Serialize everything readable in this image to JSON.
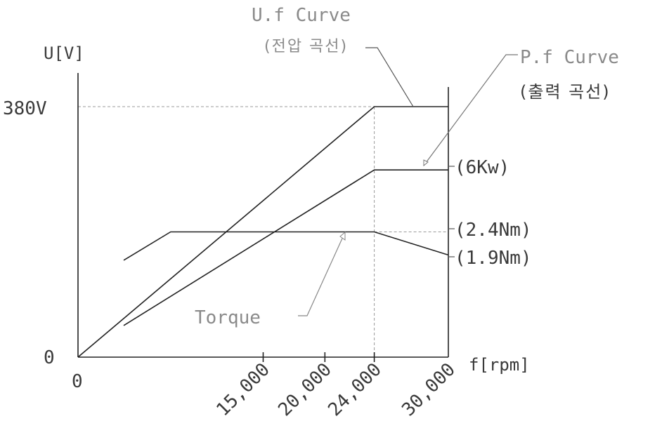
{
  "chart_data": {
    "type": "line",
    "x_label": "f[rpm]",
    "y_label": "U[V]",
    "x_ticks": [
      "0",
      "15,000",
      "20,000",
      "24,000",
      "30,000"
    ],
    "y_ticks": [
      "0",
      "380V"
    ],
    "xlim": [
      0,
      30000
    ],
    "ylim": [
      0,
      380
    ],
    "series": [
      {
        "name": "U.f Curve",
        "name_sub": "(전압 곡선)",
        "points": [
          [
            0,
            0
          ],
          [
            24000,
            380
          ],
          [
            30000,
            380
          ]
        ]
      },
      {
        "name": "P.f Curve",
        "name_sub": "(출력 곡선)",
        "points": [
          [
            3700,
            48
          ],
          [
            24000,
            284
          ],
          [
            30000,
            284
          ]
        ],
        "end_label": "(6Kw)"
      },
      {
        "name": "Torque",
        "points": [
          [
            3700,
            147
          ],
          [
            7500,
            190
          ],
          [
            24000,
            190
          ],
          [
            30000,
            155
          ]
        ],
        "end_labels": [
          "(2.4Nm)",
          "(1.9Nm)"
        ]
      }
    ],
    "reference_lines": {
      "y": [
        380,
        190
      ],
      "x": [
        24000
      ]
    }
  }
}
